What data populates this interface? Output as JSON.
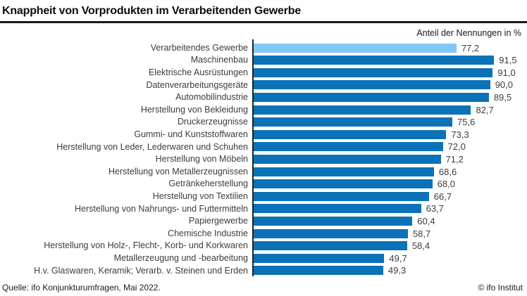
{
  "header": {
    "title": "Knappheit von Vorprodukten im Verarbeitenden Gewerbe",
    "subtitle": "Anteil der Nennungen in %"
  },
  "footer": {
    "source": "Quelle: ifo Konjunkturumfragen, Mai 2022.",
    "copyright": "© ifo Institut"
  },
  "colors": {
    "bar": "#0c72b7",
    "bar_highlight": "#7ec9f6",
    "axis": "#222222",
    "text": "#3c3c3c"
  },
  "chart_data": {
    "type": "bar",
    "orientation": "horizontal",
    "title": "Knappheit von Vorprodukten im Verarbeitenden Gewerbe",
    "value_axis_label": "Anteil der Nennungen in %",
    "xlim": [
      0,
      100
    ],
    "grid": false,
    "legend": false,
    "highlighted_category": "Verarbeitendes Gewerbe",
    "categories": [
      "Verarbeitendes Gewerbe",
      "Maschinenbau",
      "Elektrische Ausrüstungen",
      "Datenverarbeitungsgeräte",
      "Automobilindustrie",
      "Herstellung von Bekleidung",
      "Druckerzeugnisse",
      "Gummi- und Kunststoffwaren",
      "Herstellung von Leder, Lederwaren und Schuhen",
      "Herstellung von Möbeln",
      "Herstellung von Metallerzeugnissen",
      "Getränkeherstellung",
      "Herstellung von Textilien",
      "Herstellung von Nahrungs- und Futtermitteln",
      "Papiergewerbe",
      "Chemische Industrie",
      "Herstellung von Holz-, Flecht-, Korb- und Korkwaren",
      "Metallerzeugung und -bearbeitung",
      "H.v. Glaswaren, Keramik; Verarb. v. Steinen und Erden"
    ],
    "values": [
      77.2,
      91.5,
      91.0,
      90.0,
      89.5,
      82.7,
      75.6,
      73.3,
      72.0,
      71.2,
      68.6,
      68.0,
      66.7,
      63.7,
      60.4,
      58.7,
      58.4,
      49.7,
      49.3
    ],
    "value_labels": [
      "77,2",
      "91,5",
      "91,0",
      "90,0",
      "89,5",
      "82,7",
      "75,6",
      "73,3",
      "72,0",
      "71,2",
      "68,6",
      "68,0",
      "66,7",
      "63,7",
      "60,4",
      "58,7",
      "58,4",
      "49,7",
      "49,3"
    ]
  }
}
